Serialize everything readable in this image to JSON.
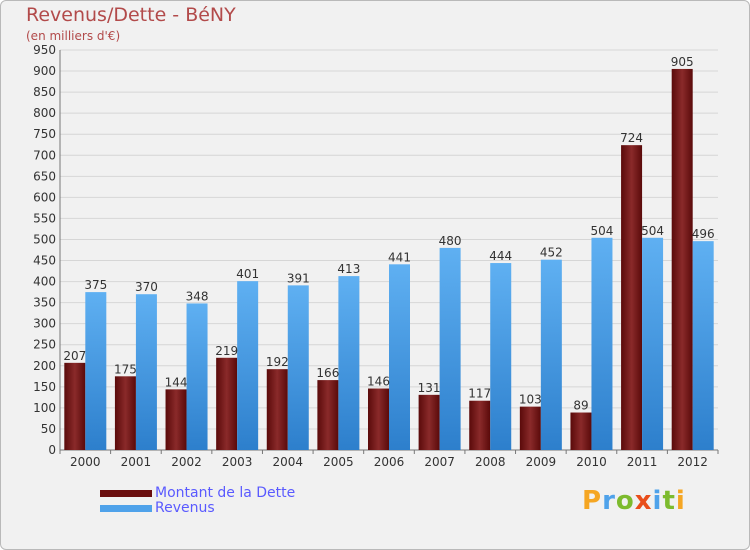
{
  "header": {
    "title": "Revenus/Dette - BéNY",
    "subtitle": "(en milliers d'€)"
  },
  "legend": {
    "items": [
      {
        "label": "Montant de la Dette",
        "color": "#6b0f0f"
      },
      {
        "label": "Revenus",
        "color": "#4fa2ea"
      }
    ]
  },
  "brand": {
    "letters": [
      "P",
      "r",
      "o",
      "x",
      "i",
      "t",
      "i"
    ],
    "colors": [
      "#f5a623",
      "#4fa2ea",
      "#7dbb2e",
      "#e94e1b",
      "#4fa2ea",
      "#7dbb2e",
      "#f5a623"
    ]
  },
  "chart_data": {
    "type": "bar",
    "title": "Revenus/Dette - BéNY",
    "subtitle": "(en milliers d'€)",
    "xlabel": "",
    "ylabel": "",
    "ylim": [
      0,
      950
    ],
    "ytick_step": 50,
    "grid": true,
    "categories": [
      "2000",
      "2001",
      "2002",
      "2003",
      "2004",
      "2005",
      "2006",
      "2007",
      "2008",
      "2009",
      "2010",
      "2011",
      "2012"
    ],
    "series": [
      {
        "name": "Montant de la Dette",
        "color": "#7a1a1a",
        "values": [
          207,
          175,
          144,
          219,
          192,
          166,
          146,
          131,
          117,
          103,
          89,
          724,
          905
        ]
      },
      {
        "name": "Revenus",
        "color": "#4fa2ea",
        "values": [
          375,
          370,
          348,
          401,
          391,
          413,
          441,
          480,
          444,
          452,
          504,
          504,
          496
        ]
      }
    ],
    "legend_position": "bottom-left"
  }
}
